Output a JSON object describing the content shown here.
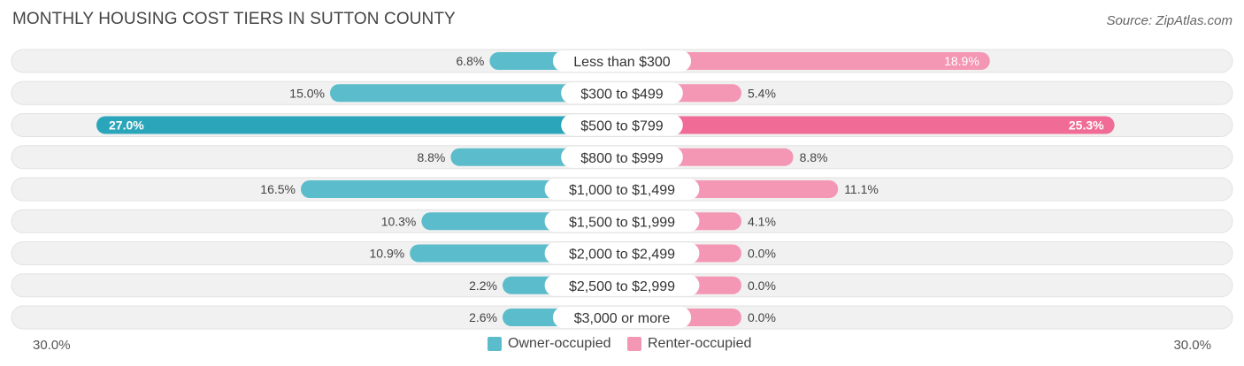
{
  "title": "MONTHLY HOUSING COST TIERS IN SUTTON COUNTY",
  "source": "Source: ZipAtlas.com",
  "axis": {
    "left_label": "30.0%",
    "right_label": "30.0%"
  },
  "legend": {
    "owner_label": "Owner-occupied",
    "renter_label": "Renter-occupied"
  },
  "colors": {
    "owner": "#5bbccb",
    "owner_highlight": "#2aa5b9",
    "renter": "#f497b5",
    "renter_highlight": "#f06b96",
    "row_bg": "#f1f1f1"
  },
  "chart_data": {
    "type": "bar",
    "orientation": "horizontal-diverging",
    "title": "MONTHLY HOUSING COST TIERS IN SUTTON COUNTY",
    "xlim": [
      -30,
      30
    ],
    "categories": [
      "Less than $300",
      "$300 to $499",
      "$500 to $799",
      "$800 to $999",
      "$1,000 to $1,499",
      "$1,500 to $1,999",
      "$2,000 to $2,499",
      "$2,500 to $2,999",
      "$3,000 or more"
    ],
    "series": [
      {
        "name": "Owner-occupied",
        "values": [
          6.8,
          15.0,
          27.0,
          8.8,
          16.5,
          10.3,
          10.9,
          2.2,
          2.6
        ],
        "labels": [
          "6.8%",
          "15.0%",
          "27.0%",
          "8.8%",
          "16.5%",
          "10.3%",
          "10.9%",
          "2.2%",
          "2.6%"
        ]
      },
      {
        "name": "Renter-occupied",
        "values": [
          18.9,
          5.4,
          25.3,
          8.8,
          11.1,
          4.1,
          0.0,
          0.0,
          0.0
        ],
        "labels": [
          "18.9%",
          "5.4%",
          "25.3%",
          "8.8%",
          "11.1%",
          "4.1%",
          "0.0%",
          "0.0%",
          "0.0%"
        ]
      }
    ],
    "highlight_category": "$500 to $799",
    "legend_position": "bottom-center",
    "grid": false
  }
}
